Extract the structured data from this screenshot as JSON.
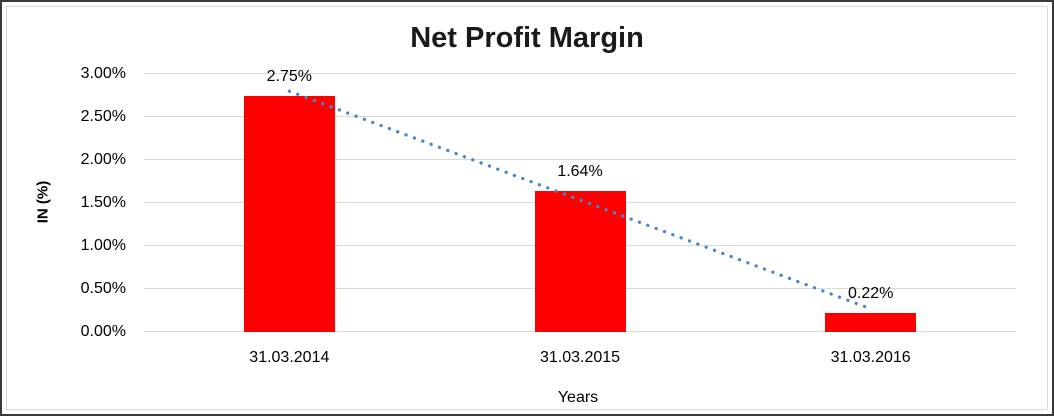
{
  "chart_data": {
    "type": "bar",
    "title": "Net Profit Margin",
    "categories": [
      "31.03.2014",
      "31.03.2015",
      "31.03.2016"
    ],
    "values": [
      2.75,
      1.64,
      0.22
    ],
    "data_labels": [
      "2.75%",
      "1.64%",
      "0.22%"
    ],
    "xlabel": "Years",
    "ylabel": "IN (%)",
    "ylim": [
      0,
      3
    ],
    "ytick_step": 0.5,
    "ytick_labels": [
      "0.00%",
      "0.50%",
      "1.00%",
      "1.50%",
      "2.00%",
      "2.50%",
      "3.00%"
    ],
    "grid": true,
    "legend": "none",
    "bar_color": "#FF0000",
    "gridline_color": "#D9D9D9",
    "text_color": "#000000",
    "trendline": {
      "type": "linear",
      "style": "dotted",
      "color": "#4A86C8",
      "endpoint_values": [
        2.8,
        0.27
      ]
    }
  }
}
